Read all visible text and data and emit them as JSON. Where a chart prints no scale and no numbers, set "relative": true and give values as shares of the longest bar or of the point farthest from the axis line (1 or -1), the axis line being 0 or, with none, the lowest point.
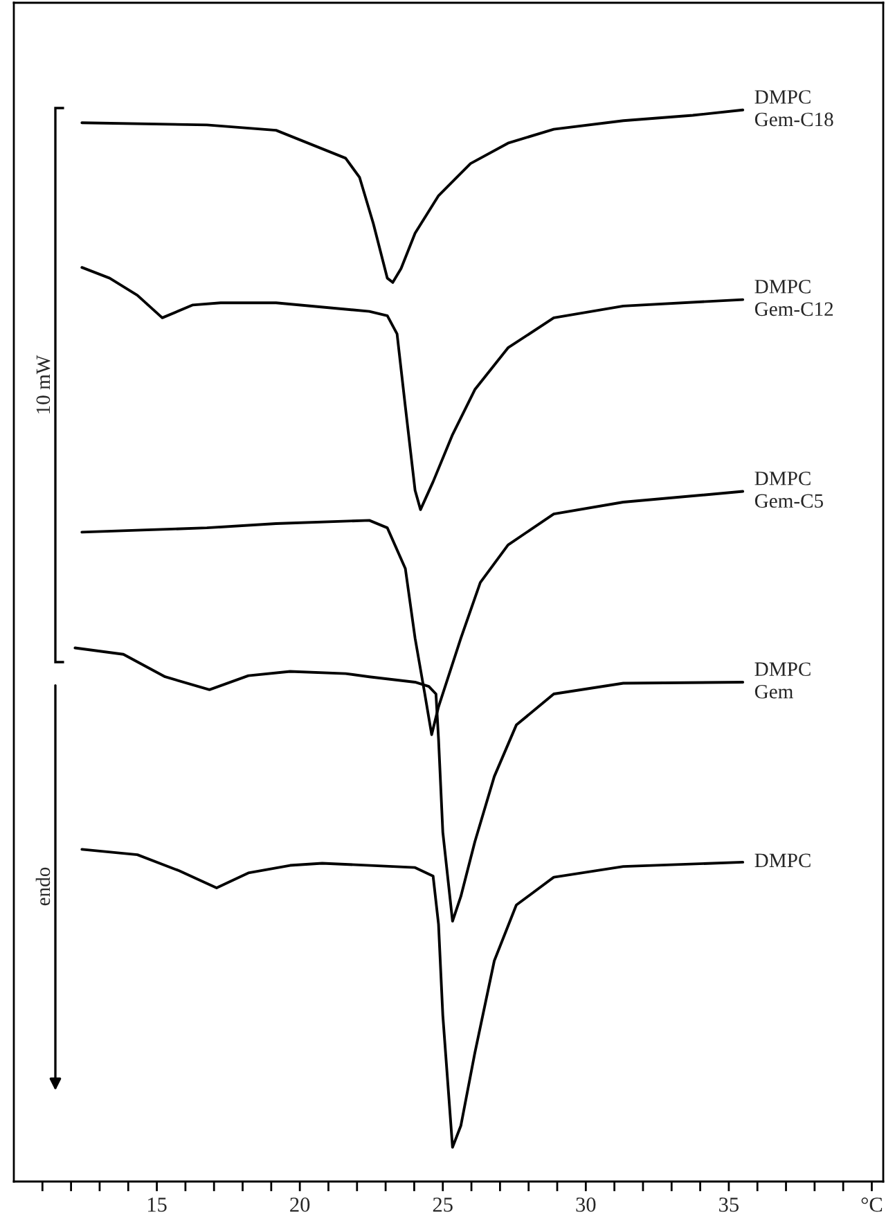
{
  "chart_data": {
    "type": "line",
    "relative": true,
    "xlim": [
      10,
      40.4
    ],
    "xticks": [
      {
        "value": 11,
        "label": null
      },
      {
        "value": 12,
        "label": null
      },
      {
        "value": 13,
        "label": null
      },
      {
        "value": 14,
        "label": null
      },
      15,
      {
        "value": 16,
        "label": null
      },
      {
        "value": 17,
        "label": null
      },
      {
        "value": 18,
        "label": null
      },
      {
        "value": 19,
        "label": null
      },
      20,
      {
        "value": 21,
        "label": null
      },
      {
        "value": 22,
        "label": null
      },
      {
        "value": 23,
        "label": null
      },
      {
        "value": 24,
        "label": null
      },
      25,
      {
        "value": 26,
        "label": null
      },
      {
        "value": 27,
        "label": null
      },
      {
        "value": 28,
        "label": null
      },
      {
        "value": 29,
        "label": null
      },
      30,
      {
        "value": 31,
        "label": null
      },
      {
        "value": 32,
        "label": null
      },
      {
        "value": 33,
        "label": null
      },
      {
        "value": 34,
        "label": null
      },
      35,
      {
        "value": 36,
        "label": null
      },
      {
        "value": 37,
        "label": null
      },
      {
        "value": 38,
        "label": null
      },
      {
        "value": 39,
        "label": null
      },
      {
        "value": 40,
        "label": "°C"
      }
    ],
    "tick_labels": "x",
    "grid": false,
    "legend": false,
    "marker": "none",
    "line_style": "solid",
    "annotations": [
      "10 mW",
      "endo"
    ],
    "series": [
      {
        "name": "DMPC\nGem-C18",
        "color": "#000000",
        "x": [
          12.38,
          16.75,
          19.17,
          21.6,
          22.09,
          22.57,
          23.06,
          23.25,
          23.54,
          24.03,
          24.85,
          25.97,
          27.28,
          28.88,
          31.31,
          33.74,
          35.49
        ],
        "values": [
          0.988,
          0.986,
          0.981,
          0.955,
          0.937,
          0.894,
          0.843,
          0.839,
          0.852,
          0.885,
          0.92,
          0.95,
          0.969,
          0.982,
          0.99,
          0.995,
          1.0
        ]
      },
      {
        "name": "DMPC\nGem-C12",
        "color": "#000000",
        "x": [
          12.38,
          13.35,
          14.32,
          15.19,
          16.26,
          17.23,
          19.17,
          22.43,
          23.06,
          23.4,
          23.69,
          24.03,
          24.22,
          24.66,
          25.34,
          26.12,
          27.28,
          28.88,
          31.31,
          35.49
        ],
        "values": [
          0.853,
          0.843,
          0.827,
          0.806,
          0.818,
          0.82,
          0.82,
          0.812,
          0.808,
          0.791,
          0.723,
          0.645,
          0.627,
          0.653,
          0.697,
          0.739,
          0.778,
          0.806,
          0.817,
          0.823
        ]
      },
      {
        "name": "DMPC\nGem-C5",
        "color": "#000000",
        "x": [
          12.38,
          16.75,
          19.17,
          22.43,
          23.06,
          23.69,
          24.03,
          24.37,
          24.61,
          24.85,
          25.63,
          26.31,
          27.28,
          28.88,
          31.31,
          35.49
        ],
        "values": [
          0.606,
          0.61,
          0.614,
          0.617,
          0.61,
          0.572,
          0.507,
          0.455,
          0.417,
          0.443,
          0.507,
          0.559,
          0.594,
          0.623,
          0.634,
          0.644
        ]
      },
      {
        "name": "DMPC\nGem",
        "color": "#000000",
        "x": [
          12.14,
          13.83,
          15.29,
          16.84,
          18.2,
          19.66,
          21.6,
          22.43,
          24.03,
          24.51,
          24.76,
          24.85,
          25.0,
          25.34,
          25.63,
          26.12,
          26.8,
          27.57,
          28.88,
          31.31,
          35.49
        ],
        "values": [
          0.498,
          0.492,
          0.471,
          0.459,
          0.472,
          0.476,
          0.474,
          0.471,
          0.466,
          0.462,
          0.455,
          0.413,
          0.326,
          0.243,
          0.266,
          0.317,
          0.378,
          0.426,
          0.455,
          0.465,
          0.466
        ]
      },
      {
        "name": "DMPC",
        "color": "#000000",
        "x": [
          12.38,
          14.32,
          15.78,
          17.09,
          18.2,
          19.66,
          20.78,
          24.03,
          24.66,
          24.85,
          25.0,
          25.34,
          25.63,
          26.12,
          26.8,
          27.57,
          28.88,
          31.31,
          35.49
        ],
        "values": [
          0.31,
          0.305,
          0.29,
          0.274,
          0.288,
          0.295,
          0.297,
          0.293,
          0.285,
          0.24,
          0.155,
          0.032,
          0.052,
          0.12,
          0.206,
          0.258,
          0.284,
          0.294,
          0.298
        ]
      }
    ]
  }
}
